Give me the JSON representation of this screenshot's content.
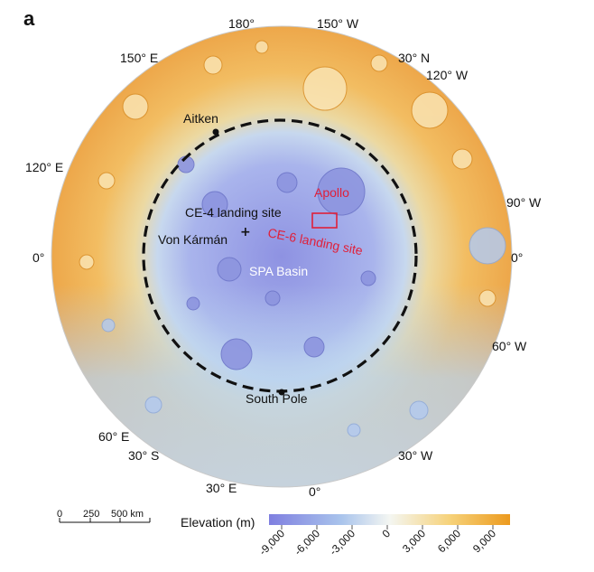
{
  "panel_label": "a",
  "graticule_labels": {
    "top": [
      "180°",
      "150° W"
    ],
    "upper_left": "150° E",
    "upper_right": [
      "30° N",
      "120° W"
    ],
    "left_upper": "120° E",
    "right_upper": "90° W",
    "left_mid": "0°",
    "right_mid": "0°",
    "right_lower": "60° W",
    "lower_left": [
      "60° E",
      "30° S",
      "30° E"
    ],
    "bottom": "0°",
    "lower_right": "30° W"
  },
  "features": {
    "aitken": "Aitken",
    "apollo": "Apollo",
    "ce4": "CE-4 landing site",
    "von_karman": "Von Kármán",
    "ce6": "CE-6 landing site",
    "spa": "SPA Basin",
    "south_pole": "South Pole"
  },
  "scale_bar": {
    "ticks": [
      "0",
      "250",
      "500 km"
    ]
  },
  "elevation_legend": {
    "title": "Elevation (m)",
    "ticks": [
      "-9,000",
      "-6,000",
      "-3,000",
      "0",
      "3,000",
      "6,000",
      "9,000"
    ],
    "colors": {
      "low": "#7f7fe0",
      "mid_low": "#a9c4ec",
      "zero": "#f4f6f2",
      "mid_high": "#f6d27a",
      "high": "#ec9a1e"
    }
  }
}
